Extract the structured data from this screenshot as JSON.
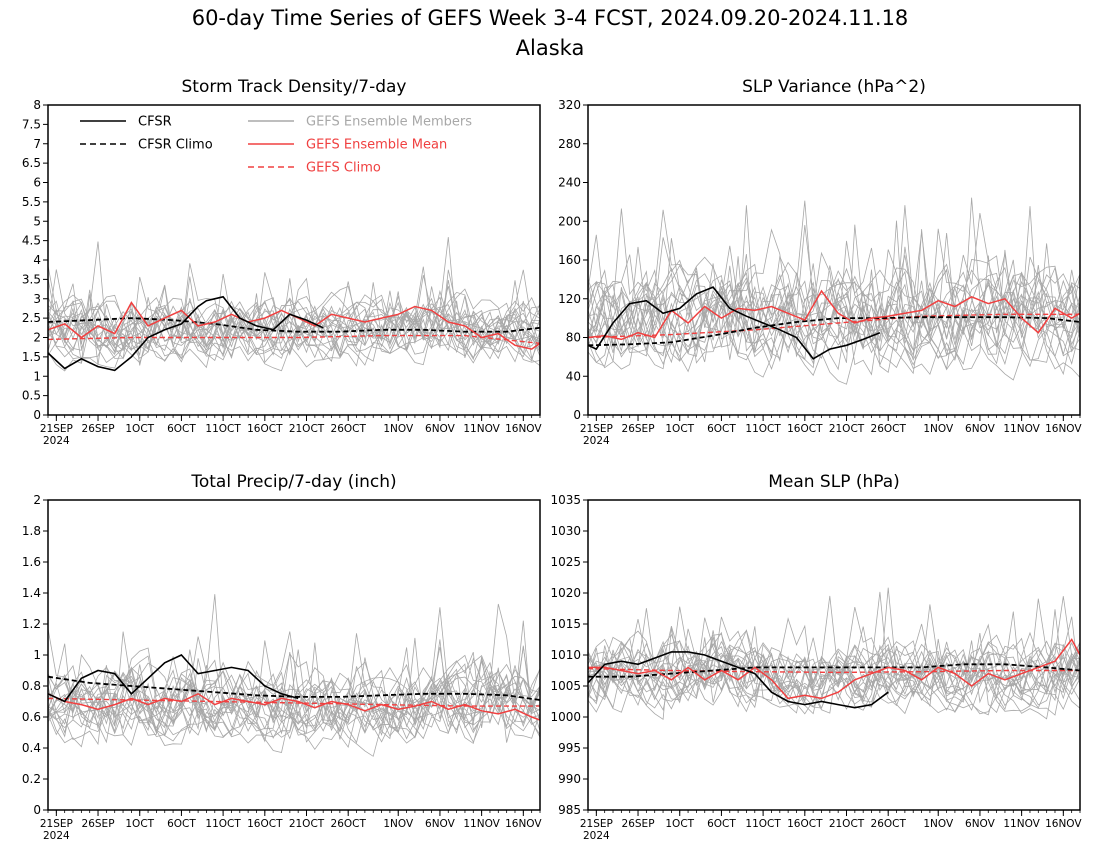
{
  "title": "60-day Time Series of GEFS Week 3-4 FCST, 2024.09.20-2024.11.18",
  "subtitle": "Alaska",
  "colors": {
    "cfsr": "#000000",
    "members": "#a8a8a8",
    "ens_mean": "#f04040",
    "gefs_climo": "#f04040"
  },
  "legend": {
    "cfsr": "CFSR",
    "cfsr_climo": "CFSR Climo",
    "members": "GEFS Ensemble Members",
    "ens_mean": "GEFS Ensemble Mean",
    "gefs_climo": "GEFS Climo"
  },
  "x_axis": {
    "year_label": "2024",
    "days": 60,
    "ticks_a": [
      {
        "day": 1,
        "label": "21SEP"
      },
      {
        "day": 6,
        "label": "26SEP"
      },
      {
        "day": 11,
        "label": "1OCT"
      },
      {
        "day": 16,
        "label": "6OCT"
      },
      {
        "day": 21,
        "label": "11OCT"
      },
      {
        "day": 26,
        "label": "16OCT"
      },
      {
        "day": 31,
        "label": "21OCT"
      },
      {
        "day": 36,
        "label": "26OCT"
      },
      {
        "day": 42,
        "label": "1NOV"
      },
      {
        "day": 47,
        "label": "6NOV"
      },
      {
        "day": 52,
        "label": "11NOV"
      },
      {
        "day": 57,
        "label": "16NOV"
      }
    ],
    "ticks_b": [
      {
        "day": 1,
        "label": "21SEP"
      },
      {
        "day": 6,
        "label": "26SEP"
      },
      {
        "day": 11,
        "label": "1OCT"
      },
      {
        "day": 16,
        "label": "6OCT"
      },
      {
        "day": 21,
        "label": "11OCT"
      },
      {
        "day": 26,
        "label": "16OCT"
      },
      {
        "day": 31,
        "label": "21OCT"
      },
      {
        "day": 36,
        "label": "26OCT"
      },
      {
        "day": 42,
        "label": "1NOV"
      },
      {
        "day": 47,
        "label": "6NOV"
      },
      {
        "day": 52,
        "label": "11NOV"
      },
      {
        "day": 57,
        "label": "16NOV"
      }
    ]
  },
  "chart_data": [
    {
      "type": "line",
      "title": "Storm Track Density/7-day",
      "ylim": [
        0,
        8
      ],
      "yticks": [
        "0",
        "0.5",
        "1",
        "1.5",
        "2",
        "2.5",
        "3",
        "3.5",
        "4",
        "4.5",
        "5",
        "5.5",
        "6",
        "6.5",
        "7",
        "7.5",
        "8"
      ],
      "member_center": 2.2,
      "member_spread": 0.75,
      "series": [
        {
          "key": "cfsr",
          "x": [
            0,
            2,
            4,
            6,
            8,
            10,
            12,
            14,
            16,
            18,
            19,
            21,
            23,
            25,
            27,
            29,
            31,
            33
          ],
          "y": [
            1.6,
            1.2,
            1.45,
            1.25,
            1.15,
            1.5,
            2.0,
            2.2,
            2.35,
            2.8,
            2.95,
            3.05,
            2.5,
            2.3,
            2.2,
            2.6,
            2.45,
            2.25
          ]
        },
        {
          "key": "cfsr_climo",
          "x": [
            0,
            5,
            10,
            15,
            20,
            25,
            30,
            35,
            40,
            45,
            50,
            55,
            59
          ],
          "y": [
            2.4,
            2.45,
            2.5,
            2.45,
            2.35,
            2.2,
            2.15,
            2.15,
            2.2,
            2.2,
            2.15,
            2.15,
            2.25
          ]
        },
        {
          "key": "ens_mean",
          "x": [
            0,
            2,
            4,
            6,
            8,
            10,
            12,
            14,
            16,
            18,
            20,
            22,
            24,
            26,
            28,
            30,
            32,
            34,
            36,
            38,
            40,
            42,
            44,
            46,
            48,
            50,
            52,
            54,
            56,
            58,
            59
          ],
          "y": [
            2.2,
            2.35,
            2.0,
            2.3,
            2.1,
            2.9,
            2.3,
            2.5,
            2.7,
            2.3,
            2.4,
            2.6,
            2.4,
            2.5,
            2.7,
            2.5,
            2.3,
            2.6,
            2.5,
            2.4,
            2.5,
            2.6,
            2.8,
            2.7,
            2.4,
            2.3,
            2.0,
            2.1,
            1.8,
            1.7,
            1.85
          ]
        },
        {
          "key": "gefs_climo",
          "x": [
            0,
            10,
            20,
            30,
            40,
            50,
            59
          ],
          "y": [
            1.95,
            2.0,
            2.0,
            2.0,
            2.05,
            2.05,
            1.85
          ]
        }
      ]
    },
    {
      "type": "line",
      "title": "SLP Variance (hPa^2)",
      "ylim": [
        0,
        320
      ],
      "yticks": [
        "0",
        "40",
        "80",
        "120",
        "160",
        "200",
        "240",
        "280",
        "320"
      ],
      "member_center": 100,
      "member_spread": 45,
      "series": [
        {
          "key": "cfsr",
          "x": [
            0,
            1,
            3,
            5,
            7,
            9,
            11,
            13,
            15,
            17,
            19,
            21,
            23,
            25,
            27,
            29,
            31,
            33,
            35
          ],
          "y": [
            72,
            68,
            95,
            115,
            118,
            105,
            110,
            125,
            132,
            110,
            102,
            95,
            88,
            80,
            58,
            68,
            72,
            78,
            85
          ]
        },
        {
          "key": "cfsr_climo",
          "x": [
            0,
            5,
            10,
            15,
            20,
            25,
            30,
            35,
            40,
            45,
            50,
            55,
            59
          ],
          "y": [
            72,
            73,
            75,
            82,
            90,
            96,
            100,
            100,
            101,
            101,
            101,
            100,
            96
          ]
        },
        {
          "key": "ens_mean",
          "x": [
            0,
            2,
            4,
            6,
            8,
            10,
            12,
            14,
            16,
            18,
            20,
            22,
            24,
            26,
            28,
            30,
            32,
            34,
            36,
            38,
            40,
            42,
            44,
            46,
            48,
            50,
            52,
            54,
            56,
            58,
            59
          ],
          "y": [
            80,
            82,
            78,
            85,
            80,
            108,
            95,
            112,
            100,
            110,
            108,
            112,
            105,
            98,
            128,
            105,
            95,
            100,
            102,
            105,
            108,
            118,
            112,
            122,
            115,
            120,
            100,
            85,
            110,
            100,
            105
          ]
        },
        {
          "key": "gefs_climo",
          "x": [
            0,
            10,
            20,
            30,
            40,
            50,
            59
          ],
          "y": [
            80,
            83,
            88,
            95,
            102,
            104,
            104
          ]
        }
      ]
    },
    {
      "type": "line",
      "title": "Total Precip/7-day (inch)",
      "ylim": [
        0,
        2
      ],
      "yticks": [
        "0",
        "0.2",
        "0.4",
        "0.6",
        "0.8",
        "1",
        "1.2",
        "1.4",
        "1.6",
        "1.8",
        "2"
      ],
      "member_center": 0.68,
      "member_spread": 0.22,
      "series": [
        {
          "key": "cfsr",
          "x": [
            0,
            2,
            4,
            6,
            8,
            10,
            12,
            14,
            16,
            18,
            20,
            22,
            24,
            26,
            28,
            30
          ],
          "y": [
            0.75,
            0.7,
            0.85,
            0.9,
            0.88,
            0.75,
            0.85,
            0.95,
            1.0,
            0.88,
            0.9,
            0.92,
            0.9,
            0.8,
            0.75,
            0.72
          ]
        },
        {
          "key": "cfsr_climo",
          "x": [
            0,
            5,
            10,
            15,
            20,
            25,
            30,
            35,
            40,
            45,
            50,
            55,
            59
          ],
          "y": [
            0.86,
            0.82,
            0.8,
            0.78,
            0.76,
            0.74,
            0.73,
            0.73,
            0.74,
            0.75,
            0.75,
            0.74,
            0.71
          ]
        },
        {
          "key": "ens_mean",
          "x": [
            0,
            2,
            4,
            6,
            8,
            10,
            12,
            14,
            16,
            18,
            20,
            22,
            24,
            26,
            28,
            30,
            32,
            34,
            36,
            38,
            40,
            42,
            44,
            46,
            48,
            50,
            52,
            54,
            56,
            58,
            59
          ],
          "y": [
            0.75,
            0.7,
            0.68,
            0.65,
            0.68,
            0.72,
            0.68,
            0.72,
            0.7,
            0.75,
            0.68,
            0.72,
            0.7,
            0.68,
            0.72,
            0.7,
            0.66,
            0.7,
            0.68,
            0.64,
            0.68,
            0.65,
            0.67,
            0.7,
            0.65,
            0.68,
            0.64,
            0.62,
            0.65,
            0.6,
            0.58
          ]
        },
        {
          "key": "gefs_climo",
          "x": [
            0,
            10,
            20,
            30,
            40,
            50,
            59
          ],
          "y": [
            0.72,
            0.71,
            0.7,
            0.69,
            0.68,
            0.67,
            0.67
          ]
        }
      ]
    },
    {
      "type": "line",
      "title": "Mean SLP (hPa)",
      "ylim": [
        985,
        1035
      ],
      "yticks": [
        "985",
        "990",
        "995",
        "1000",
        "1005",
        "1010",
        "1015",
        "1020",
        "1025",
        "1030",
        "1035"
      ],
      "member_center": 1007,
      "member_spread": 5,
      "series": [
        {
          "key": "cfsr",
          "x": [
            0,
            2,
            4,
            6,
            8,
            10,
            12,
            14,
            16,
            18,
            20,
            22,
            24,
            26,
            28,
            30,
            32,
            34,
            36
          ],
          "y": [
            1005.5,
            1008.5,
            1009,
            1008.5,
            1009.5,
            1010.5,
            1010.5,
            1010,
            1009,
            1008,
            1007,
            1004,
            1002.5,
            1002,
            1002.5,
            1002,
            1001.5,
            1002,
            1004
          ]
        },
        {
          "key": "cfsr_climo",
          "x": [
            0,
            5,
            10,
            15,
            20,
            25,
            30,
            35,
            40,
            45,
            50,
            55,
            59
          ],
          "y": [
            1006.5,
            1006.5,
            1007,
            1007.5,
            1008,
            1008,
            1008,
            1008,
            1008,
            1008.5,
            1008.5,
            1008,
            1007.5
          ]
        },
        {
          "key": "ens_mean",
          "x": [
            0,
            2,
            4,
            6,
            8,
            10,
            12,
            14,
            16,
            18,
            20,
            22,
            24,
            26,
            28,
            30,
            32,
            34,
            36,
            38,
            40,
            42,
            44,
            46,
            48,
            50,
            52,
            54,
            56,
            58,
            59
          ],
          "y": [
            1008,
            1008,
            1007.5,
            1007,
            1007.5,
            1006,
            1008,
            1006,
            1007.5,
            1006,
            1008,
            1006,
            1003,
            1003.5,
            1003,
            1004,
            1006,
            1007,
            1008,
            1007.5,
            1006,
            1008,
            1007,
            1005,
            1007,
            1006,
            1007,
            1008,
            1009,
            1012.5,
            1010
          ]
        },
        {
          "key": "gefs_climo",
          "x": [
            0,
            10,
            20,
            30,
            40,
            50,
            59
          ],
          "y": [
            1007.8,
            1007.5,
            1007.3,
            1007.2,
            1007.3,
            1007.5,
            1007.5
          ]
        }
      ]
    }
  ]
}
